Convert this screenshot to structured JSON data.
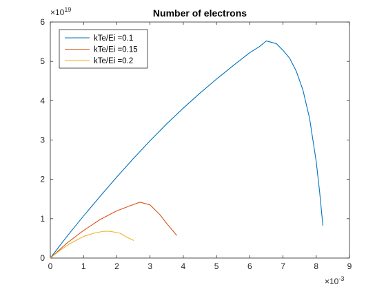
{
  "chart_data": {
    "type": "line",
    "title": "Number of electrons",
    "xlabel": "",
    "ylabel": "",
    "xlim": [
      0,
      0.009
    ],
    "ylim": [
      0,
      6e+19
    ],
    "x_exponent_label": "× 10^-3",
    "x_exponent_base": "×10",
    "x_exponent_power": "-3",
    "y_exponent_base": "×10",
    "y_exponent_power": "19",
    "x_ticks": [
      0,
      1,
      2,
      3,
      4,
      5,
      6,
      7,
      8,
      9
    ],
    "x_tick_labels": [
      "0",
      "1",
      "2",
      "3",
      "4",
      "5",
      "6",
      "7",
      "8",
      "9"
    ],
    "y_ticks": [
      0,
      1,
      2,
      3,
      4,
      5,
      6
    ],
    "y_tick_labels": [
      "0",
      "1",
      "2",
      "3",
      "4",
      "5",
      "6"
    ],
    "grid": false,
    "legend_position": "top-left",
    "series": [
      {
        "name": "kTe/Ei =0.1",
        "color": "#0072BD",
        "x": [
          0,
          0.0005,
          0.001,
          0.0015,
          0.002,
          0.0025,
          0.003,
          0.0035,
          0.004,
          0.0045,
          0.005,
          0.0055,
          0.006,
          0.0063,
          0.0065,
          0.0068,
          0.007,
          0.0072,
          0.0074,
          0.0076,
          0.0078,
          0.008,
          0.0081,
          0.0082
        ],
        "y": [
          0,
          5.5e+18,
          1.07e+19,
          1.57e+19,
          2.06e+19,
          2.53e+19,
          2.98e+19,
          3.41e+19,
          3.81e+19,
          4.19e+19,
          4.55e+19,
          4.89e+19,
          5.22e+19,
          5.38e+19,
          5.52e+19,
          5.45e+19,
          5.28e+19,
          5.08e+19,
          4.75e+19,
          4.27e+19,
          3.55e+19,
          2.45e+19,
          1.7e+19,
          8.3e+18
        ]
      },
      {
        "name": "kTe/Ei =0.15",
        "color": "#D95319",
        "x": [
          0,
          0.0005,
          0.001,
          0.0015,
          0.002,
          0.0025,
          0.0027,
          0.003,
          0.0033,
          0.0035,
          0.0037,
          0.0038
        ],
        "y": [
          0,
          3.8e+18,
          7e+18,
          9.8e+18,
          1.2e+19,
          1.36e+19,
          1.42e+19,
          1.35e+19,
          1.1e+19,
          8.8e+18,
          6.8e+18,
          5.8e+18
        ]
      },
      {
        "name": "kTe/Ei =0.2",
        "color": "#EDB120",
        "x": [
          0,
          0.0003,
          0.0006,
          0.001,
          0.0013,
          0.0016,
          0.0018,
          0.0021,
          0.0023,
          0.0025
        ],
        "y": [
          0,
          2e+18,
          3.7e+18,
          5.5e+18,
          6.3e+18,
          6.8e+18,
          6.8e+18,
          6.3e+18,
          5.3e+18,
          4.5e+18
        ]
      }
    ]
  }
}
